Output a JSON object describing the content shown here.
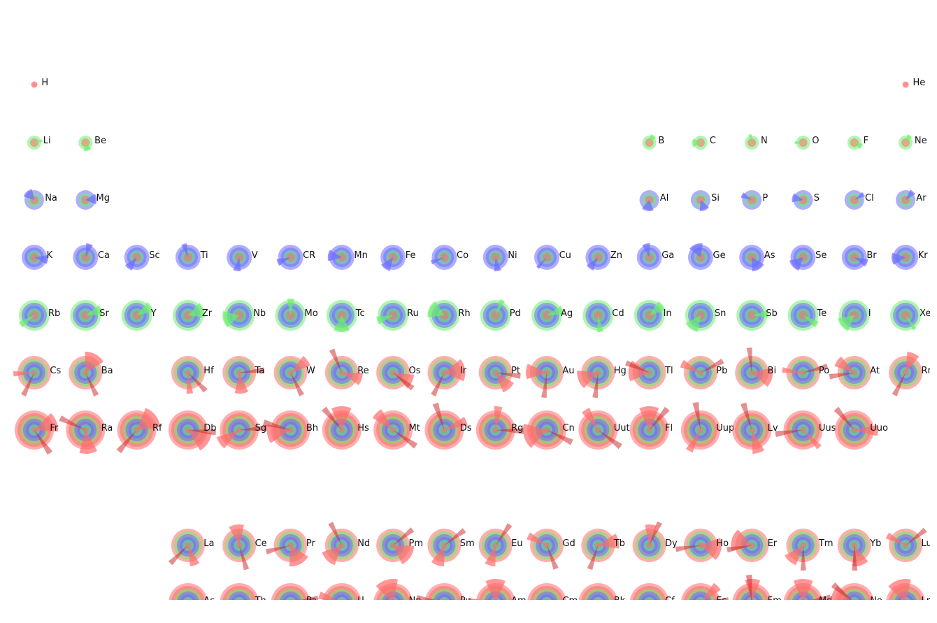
{
  "figure": {
    "background": "#ffffff",
    "colors": {
      "s": "#ff6b6b",
      "p": "#6bef6b",
      "d": "#6b6bff",
      "f": "#cc2222"
    }
  },
  "elements": [
    {
      "symbol": "H",
      "row": 1,
      "col": 1,
      "shells": [
        "s"
      ]
    },
    {
      "symbol": "He",
      "row": 1,
      "col": 18,
      "shells": [
        "s"
      ]
    },
    {
      "symbol": "Li",
      "row": 2,
      "col": 1,
      "shells": [
        "s",
        "p"
      ]
    },
    {
      "symbol": "Be",
      "row": 2,
      "col": 2,
      "shells": [
        "s",
        "p"
      ]
    },
    {
      "symbol": "B",
      "row": 2,
      "col": 13,
      "shells": [
        "s",
        "p"
      ]
    },
    {
      "symbol": "C",
      "row": 2,
      "col": 14,
      "shells": [
        "s",
        "p"
      ]
    },
    {
      "symbol": "N",
      "row": 2,
      "col": 15,
      "shells": [
        "s",
        "p"
      ]
    },
    {
      "symbol": "O",
      "row": 2,
      "col": 16,
      "shells": [
        "s",
        "p"
      ]
    },
    {
      "symbol": "F",
      "row": 2,
      "col": 17,
      "shells": [
        "s",
        "p"
      ]
    },
    {
      "symbol": "Ne",
      "row": 2,
      "col": 18,
      "shells": [
        "s",
        "p"
      ]
    },
    {
      "symbol": "Na",
      "row": 3,
      "col": 1,
      "shells": [
        "s",
        "p",
        "d"
      ]
    },
    {
      "symbol": "Mg",
      "row": 3,
      "col": 2,
      "shells": [
        "s",
        "p",
        "d"
      ]
    },
    {
      "symbol": "Al",
      "row": 3,
      "col": 13,
      "shells": [
        "s",
        "p",
        "d"
      ]
    },
    {
      "symbol": "Si",
      "row": 3,
      "col": 14,
      "shells": [
        "s",
        "p",
        "d"
      ]
    },
    {
      "symbol": "P",
      "row": 3,
      "col": 15,
      "shells": [
        "s",
        "p",
        "d"
      ]
    },
    {
      "symbol": "S",
      "row": 3,
      "col": 16,
      "shells": [
        "s",
        "p",
        "d"
      ]
    },
    {
      "symbol": "Cl",
      "row": 3,
      "col": 17,
      "shells": [
        "s",
        "p",
        "d"
      ]
    },
    {
      "symbol": "Ar",
      "row": 3,
      "col": 18,
      "shells": [
        "s",
        "p",
        "d"
      ]
    },
    {
      "symbol": "K",
      "row": 4,
      "col": 1,
      "shells": [
        "s",
        "p",
        "d",
        "d"
      ]
    },
    {
      "symbol": "Ca",
      "row": 4,
      "col": 2,
      "shells": [
        "s",
        "p",
        "d",
        "d"
      ]
    },
    {
      "symbol": "Sc",
      "row": 4,
      "col": 3,
      "shells": [
        "s",
        "p",
        "d",
        "d"
      ]
    },
    {
      "symbol": "Ti",
      "row": 4,
      "col": 4,
      "shells": [
        "s",
        "p",
        "d",
        "d"
      ]
    },
    {
      "symbol": "V",
      "row": 4,
      "col": 5,
      "shells": [
        "s",
        "p",
        "d",
        "d"
      ]
    },
    {
      "symbol": "CR",
      "row": 4,
      "col": 6,
      "shells": [
        "s",
        "p",
        "d",
        "d"
      ]
    },
    {
      "symbol": "Mn",
      "row": 4,
      "col": 7,
      "shells": [
        "s",
        "p",
        "d",
        "d"
      ]
    },
    {
      "symbol": "Fe",
      "row": 4,
      "col": 8,
      "shells": [
        "s",
        "p",
        "d",
        "d"
      ]
    },
    {
      "symbol": "Co",
      "row": 4,
      "col": 9,
      "shells": [
        "s",
        "p",
        "d",
        "d"
      ]
    },
    {
      "symbol": "Ni",
      "row": 4,
      "col": 10,
      "shells": [
        "s",
        "p",
        "d",
        "d"
      ]
    },
    {
      "symbol": "Cu",
      "row": 4,
      "col": 11,
      "shells": [
        "s",
        "p",
        "d",
        "d"
      ]
    },
    {
      "symbol": "Zn",
      "row": 4,
      "col": 12,
      "shells": [
        "s",
        "p",
        "d",
        "d"
      ]
    },
    {
      "symbol": "Ga",
      "row": 4,
      "col": 13,
      "shells": [
        "s",
        "p",
        "d",
        "d"
      ]
    },
    {
      "symbol": "Ge",
      "row": 4,
      "col": 14,
      "shells": [
        "s",
        "p",
        "d",
        "d"
      ]
    },
    {
      "symbol": "As",
      "row": 4,
      "col": 15,
      "shells": [
        "s",
        "p",
        "d",
        "d"
      ]
    },
    {
      "symbol": "Se",
      "row": 4,
      "col": 16,
      "shells": [
        "s",
        "p",
        "d",
        "d"
      ]
    },
    {
      "symbol": "Br",
      "row": 4,
      "col": 17,
      "shells": [
        "s",
        "p",
        "d",
        "d"
      ]
    },
    {
      "symbol": "Kr",
      "row": 4,
      "col": 18,
      "shells": [
        "s",
        "p",
        "d",
        "d"
      ]
    },
    {
      "symbol": "Rb",
      "row": 5,
      "col": 1,
      "shells": [
        "s",
        "p",
        "d",
        "d",
        "p"
      ]
    },
    {
      "symbol": "Sr",
      "row": 5,
      "col": 2,
      "shells": [
        "s",
        "p",
        "d",
        "d",
        "p"
      ]
    },
    {
      "symbol": "Y",
      "row": 5,
      "col": 3,
      "shells": [
        "s",
        "p",
        "d",
        "d",
        "p"
      ]
    },
    {
      "symbol": "Zr",
      "row": 5,
      "col": 4,
      "shells": [
        "s",
        "p",
        "d",
        "d",
        "p"
      ]
    },
    {
      "symbol": "Nb",
      "row": 5,
      "col": 5,
      "shells": [
        "s",
        "p",
        "d",
        "d",
        "p"
      ]
    },
    {
      "symbol": "Mo",
      "row": 5,
      "col": 6,
      "shells": [
        "s",
        "p",
        "d",
        "d",
        "p"
      ]
    },
    {
      "symbol": "Tc",
      "row": 5,
      "col": 7,
      "shells": [
        "s",
        "p",
        "d",
        "d",
        "p"
      ]
    },
    {
      "symbol": "Ru",
      "row": 5,
      "col": 8,
      "shells": [
        "s",
        "p",
        "d",
        "d",
        "p"
      ]
    },
    {
      "symbol": "Rh",
      "row": 5,
      "col": 9,
      "shells": [
        "s",
        "p",
        "d",
        "d",
        "p"
      ]
    },
    {
      "symbol": "Pd",
      "row": 5,
      "col": 10,
      "shells": [
        "s",
        "p",
        "d",
        "d",
        "p"
      ]
    },
    {
      "symbol": "Ag",
      "row": 5,
      "col": 11,
      "shells": [
        "s",
        "p",
        "d",
        "d",
        "p"
      ]
    },
    {
      "symbol": "Cd",
      "row": 5,
      "col": 12,
      "shells": [
        "s",
        "p",
        "d",
        "d",
        "p"
      ]
    },
    {
      "symbol": "In",
      "row": 5,
      "col": 13,
      "shells": [
        "s",
        "p",
        "d",
        "d",
        "p"
      ]
    },
    {
      "symbol": "Sn",
      "row": 5,
      "col": 14,
      "shells": [
        "s",
        "p",
        "d",
        "d",
        "p"
      ]
    },
    {
      "symbol": "Sb",
      "row": 5,
      "col": 15,
      "shells": [
        "s",
        "p",
        "d",
        "d",
        "p"
      ]
    },
    {
      "symbol": "Te",
      "row": 5,
      "col": 16,
      "shells": [
        "s",
        "p",
        "d",
        "d",
        "p"
      ]
    },
    {
      "symbol": "I",
      "row": 5,
      "col": 17,
      "shells": [
        "s",
        "p",
        "d",
        "d",
        "p"
      ]
    },
    {
      "symbol": "Xe",
      "row": 5,
      "col": 18,
      "shells": [
        "s",
        "p",
        "d",
        "d",
        "p"
      ]
    },
    {
      "symbol": "Cs",
      "row": 6,
      "col": 1,
      "shells": [
        "s",
        "p",
        "d",
        "d",
        "p",
        "s"
      ]
    },
    {
      "symbol": "Ba",
      "row": 6,
      "col": 2,
      "shells": [
        "s",
        "p",
        "d",
        "d",
        "p",
        "s"
      ]
    },
    {
      "symbol": "Hf",
      "row": 6,
      "col": 4,
      "shells": [
        "s",
        "p",
        "d",
        "d",
        "p",
        "s"
      ]
    },
    {
      "symbol": "Ta",
      "row": 6,
      "col": 5,
      "shells": [
        "s",
        "p",
        "d",
        "d",
        "p",
        "s"
      ]
    },
    {
      "symbol": "W",
      "row": 6,
      "col": 6,
      "shells": [
        "s",
        "p",
        "d",
        "d",
        "p",
        "s"
      ]
    },
    {
      "symbol": "Re",
      "row": 6,
      "col": 7,
      "shells": [
        "s",
        "p",
        "d",
        "d",
        "p",
        "s"
      ]
    },
    {
      "symbol": "Os",
      "row": 6,
      "col": 8,
      "shells": [
        "s",
        "p",
        "d",
        "d",
        "p",
        "s"
      ]
    },
    {
      "symbol": "Ir",
      "row": 6,
      "col": 9,
      "shells": [
        "s",
        "p",
        "d",
        "d",
        "p",
        "s"
      ]
    },
    {
      "symbol": "Pt",
      "row": 6,
      "col": 10,
      "shells": [
        "s",
        "p",
        "d",
        "d",
        "p",
        "s"
      ]
    },
    {
      "symbol": "Au",
      "row": 6,
      "col": 11,
      "shells": [
        "s",
        "p",
        "d",
        "d",
        "p",
        "s"
      ]
    },
    {
      "symbol": "Hg",
      "row": 6,
      "col": 12,
      "shells": [
        "s",
        "p",
        "d",
        "d",
        "p",
        "s"
      ]
    },
    {
      "symbol": "Tl",
      "row": 6,
      "col": 13,
      "shells": [
        "s",
        "p",
        "d",
        "d",
        "p",
        "s"
      ]
    },
    {
      "symbol": "Pb",
      "row": 6,
      "col": 14,
      "shells": [
        "s",
        "p",
        "d",
        "d",
        "p",
        "s"
      ]
    },
    {
      "symbol": "Bi",
      "row": 6,
      "col": 15,
      "shells": [
        "s",
        "p",
        "d",
        "d",
        "p",
        "s"
      ]
    },
    {
      "symbol": "Po",
      "row": 6,
      "col": 16,
      "shells": [
        "s",
        "p",
        "d",
        "d",
        "p",
        "s"
      ]
    },
    {
      "symbol": "At",
      "row": 6,
      "col": 17,
      "shells": [
        "s",
        "p",
        "d",
        "d",
        "p",
        "s"
      ]
    },
    {
      "symbol": "Rn",
      "row": 6,
      "col": 18,
      "shells": [
        "s",
        "p",
        "d",
        "d",
        "p",
        "s"
      ]
    },
    {
      "symbol": "Fr",
      "row": 7,
      "col": 1,
      "shells": [
        "s",
        "p",
        "d",
        "d",
        "p",
        "s",
        "s"
      ]
    },
    {
      "symbol": "Ra",
      "row": 7,
      "col": 2,
      "shells": [
        "s",
        "p",
        "d",
        "d",
        "p",
        "s",
        "s"
      ]
    },
    {
      "symbol": "Rf",
      "row": 7,
      "col": 3,
      "shells": [
        "s",
        "p",
        "d",
        "d",
        "p",
        "s",
        "s"
      ]
    },
    {
      "symbol": "Db",
      "row": 7,
      "col": 4,
      "shells": [
        "s",
        "p",
        "d",
        "d",
        "p",
        "s",
        "s"
      ]
    },
    {
      "symbol": "Sg",
      "row": 7,
      "col": 5,
      "shells": [
        "s",
        "p",
        "d",
        "d",
        "p",
        "s",
        "s"
      ]
    },
    {
      "symbol": "Bh",
      "row": 7,
      "col": 6,
      "shells": [
        "s",
        "p",
        "d",
        "d",
        "p",
        "s",
        "s"
      ]
    },
    {
      "symbol": "Hs",
      "row": 7,
      "col": 7,
      "shells": [
        "s",
        "p",
        "d",
        "d",
        "p",
        "s",
        "s"
      ]
    },
    {
      "symbol": "Mt",
      "row": 7,
      "col": 8,
      "shells": [
        "s",
        "p",
        "d",
        "d",
        "p",
        "s",
        "s"
      ]
    },
    {
      "symbol": "Ds",
      "row": 7,
      "col": 9,
      "shells": [
        "s",
        "p",
        "d",
        "d",
        "p",
        "s",
        "s"
      ]
    },
    {
      "symbol": "Rg",
      "row": 7,
      "col": 10,
      "shells": [
        "s",
        "p",
        "d",
        "d",
        "p",
        "s",
        "s"
      ]
    },
    {
      "symbol": "Cn",
      "row": 7,
      "col": 11,
      "shells": [
        "s",
        "p",
        "d",
        "d",
        "p",
        "s",
        "s"
      ]
    },
    {
      "symbol": "Uut",
      "row": 7,
      "col": 12,
      "shells": [
        "s",
        "p",
        "d",
        "d",
        "p",
        "s",
        "s"
      ]
    },
    {
      "symbol": "Fl",
      "row": 7,
      "col": 13,
      "shells": [
        "s",
        "p",
        "d",
        "d",
        "p",
        "s",
        "s"
      ]
    },
    {
      "symbol": "Uup",
      "row": 7,
      "col": 14,
      "shells": [
        "s",
        "p",
        "d",
        "d",
        "p",
        "s",
        "s"
      ]
    },
    {
      "symbol": "Lv",
      "row": 7,
      "col": 15,
      "shells": [
        "s",
        "p",
        "d",
        "d",
        "p",
        "s",
        "s"
      ]
    },
    {
      "symbol": "Uus",
      "row": 7,
      "col": 16,
      "shells": [
        "s",
        "p",
        "d",
        "d",
        "p",
        "s",
        "s"
      ]
    },
    {
      "symbol": "Uuo",
      "row": 7,
      "col": 17,
      "shells": [
        "s",
        "p",
        "d",
        "d",
        "p",
        "s",
        "s"
      ]
    },
    {
      "symbol": "La",
      "row": 9,
      "col": 4,
      "shells": [
        "s",
        "p",
        "d",
        "d",
        "p",
        "s"
      ]
    },
    {
      "symbol": "Ce",
      "row": 9,
      "col": 5,
      "shells": [
        "s",
        "p",
        "d",
        "d",
        "p",
        "s"
      ]
    },
    {
      "symbol": "Pr",
      "row": 9,
      "col": 6,
      "shells": [
        "s",
        "p",
        "d",
        "d",
        "p",
        "s"
      ]
    },
    {
      "symbol": "Nd",
      "row": 9,
      "col": 7,
      "shells": [
        "s",
        "p",
        "d",
        "d",
        "p",
        "s"
      ]
    },
    {
      "symbol": "Pm",
      "row": 9,
      "col": 8,
      "shells": [
        "s",
        "p",
        "d",
        "d",
        "p",
        "s"
      ]
    },
    {
      "symbol": "Sm",
      "row": 9,
      "col": 9,
      "shells": [
        "s",
        "p",
        "d",
        "d",
        "p",
        "s"
      ]
    },
    {
      "symbol": "Eu",
      "row": 9,
      "col": 10,
      "shells": [
        "s",
        "p",
        "d",
        "d",
        "p",
        "s"
      ]
    },
    {
      "symbol": "Gd",
      "row": 9,
      "col": 11,
      "shells": [
        "s",
        "p",
        "d",
        "d",
        "p",
        "s"
      ]
    },
    {
      "symbol": "Tb",
      "row": 9,
      "col": 12,
      "shells": [
        "s",
        "p",
        "d",
        "d",
        "p",
        "s"
      ]
    },
    {
      "symbol": "Dy",
      "row": 9,
      "col": 13,
      "shells": [
        "s",
        "p",
        "d",
        "d",
        "p",
        "s"
      ]
    },
    {
      "symbol": "Ho",
      "row": 9,
      "col": 14,
      "shells": [
        "s",
        "p",
        "d",
        "d",
        "p",
        "s"
      ]
    },
    {
      "symbol": "Er",
      "row": 9,
      "col": 15,
      "shells": [
        "s",
        "p",
        "d",
        "d",
        "p",
        "s"
      ]
    },
    {
      "symbol": "Tm",
      "row": 9,
      "col": 16,
      "shells": [
        "s",
        "p",
        "d",
        "d",
        "p",
        "s"
      ]
    },
    {
      "symbol": "Yb",
      "row": 9,
      "col": 17,
      "shells": [
        "s",
        "p",
        "d",
        "d",
        "p",
        "s"
      ]
    },
    {
      "symbol": "Lu",
      "row": 9,
      "col": 18,
      "shells": [
        "s",
        "p",
        "d",
        "d",
        "p",
        "s"
      ]
    },
    {
      "symbol": "Ac",
      "row": 10,
      "col": 4,
      "shells": [
        "s",
        "p",
        "d",
        "d",
        "p",
        "s",
        "s"
      ]
    },
    {
      "symbol": "Th",
      "row": 10,
      "col": 5,
      "shells": [
        "s",
        "p",
        "d",
        "d",
        "p",
        "s",
        "s"
      ]
    },
    {
      "symbol": "Pa",
      "row": 10,
      "col": 6,
      "shells": [
        "s",
        "p",
        "d",
        "d",
        "p",
        "s",
        "s"
      ]
    },
    {
      "symbol": "U",
      "row": 10,
      "col": 7,
      "shells": [
        "s",
        "p",
        "d",
        "d",
        "p",
        "s",
        "s"
      ]
    },
    {
      "symbol": "Np",
      "row": 10,
      "col": 8,
      "shells": [
        "s",
        "p",
        "d",
        "d",
        "p",
        "s",
        "s"
      ]
    },
    {
      "symbol": "Pu",
      "row": 10,
      "col": 9,
      "shells": [
        "s",
        "p",
        "d",
        "d",
        "p",
        "s",
        "s"
      ]
    },
    {
      "symbol": "Am",
      "row": 10,
      "col": 10,
      "shells": [
        "s",
        "p",
        "d",
        "d",
        "p",
        "s",
        "s"
      ]
    },
    {
      "symbol": "Cm",
      "row": 10,
      "col": 11,
      "shells": [
        "s",
        "p",
        "d",
        "d",
        "p",
        "s",
        "s"
      ]
    },
    {
      "symbol": "Bk",
      "row": 10,
      "col": 12,
      "shells": [
        "s",
        "p",
        "d",
        "d",
        "p",
        "s",
        "s"
      ]
    },
    {
      "symbol": "Cf",
      "row": 10,
      "col": 13,
      "shells": [
        "s",
        "p",
        "d",
        "d",
        "p",
        "s",
        "s"
      ]
    },
    {
      "symbol": "Es",
      "row": 10,
      "col": 14,
      "shells": [
        "s",
        "p",
        "d",
        "d",
        "p",
        "s",
        "s"
      ]
    },
    {
      "symbol": "Fm",
      "row": 10,
      "col": 15,
      "shells": [
        "s",
        "p",
        "d",
        "d",
        "p",
        "s",
        "s"
      ]
    },
    {
      "symbol": "Md",
      "row": 10,
      "col": 16,
      "shells": [
        "s",
        "p",
        "d",
        "d",
        "p",
        "s",
        "s"
      ]
    },
    {
      "symbol": "No",
      "row": 10,
      "col": 17,
      "shells": [
        "s",
        "p",
        "d",
        "d",
        "p",
        "s",
        "s"
      ]
    },
    {
      "symbol": "Lr",
      "row": 10,
      "col": 18,
      "shells": [
        "s",
        "p",
        "d",
        "d",
        "p",
        "s",
        "s"
      ]
    }
  ]
}
